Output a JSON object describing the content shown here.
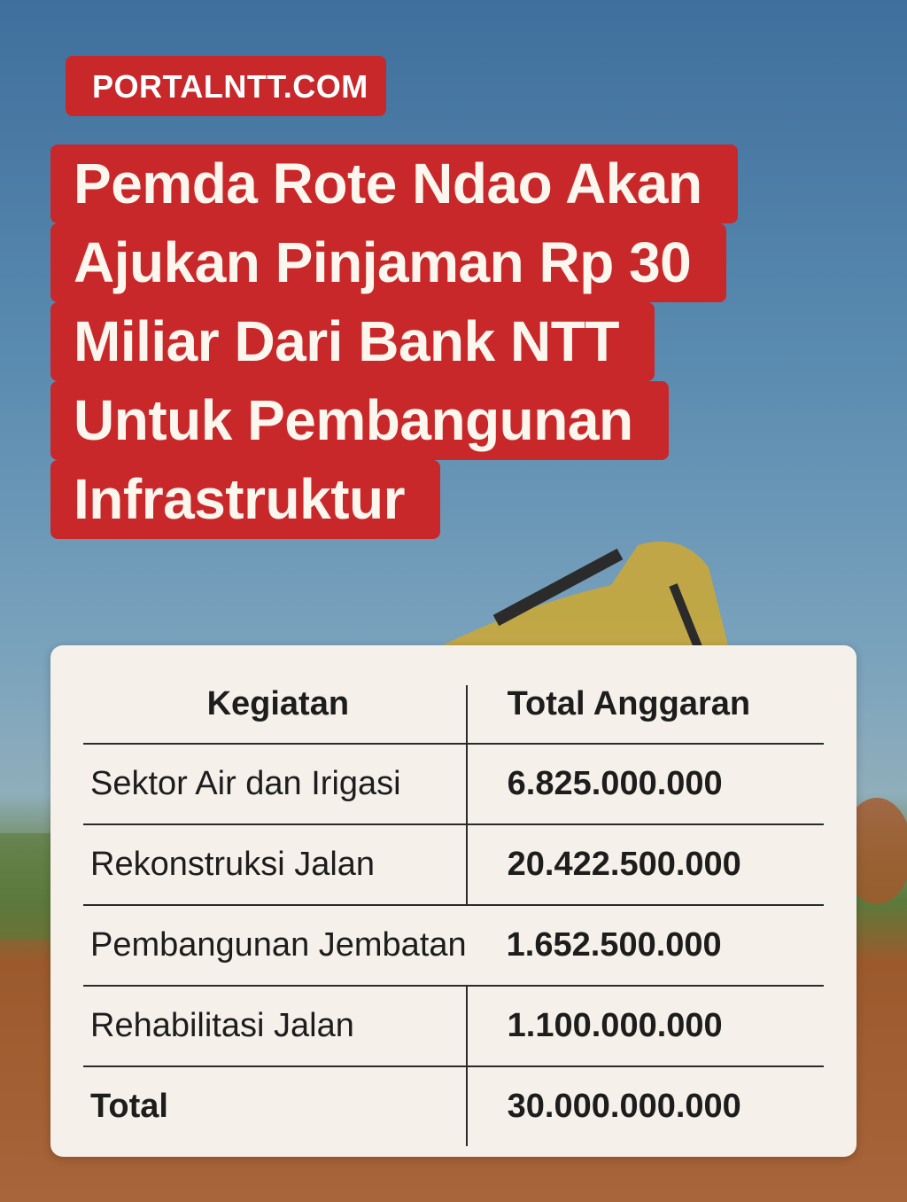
{
  "brand": "PORTALNTT.COM",
  "headline": {
    "lines": [
      "Pemda Rote Ndao Akan",
      "Ajukan Pinjaman Rp 30",
      "Miliar Dari Bank NTT",
      "Untuk Pembangunan",
      "Infrastruktur"
    ]
  },
  "table": {
    "headers": [
      "Kegiatan",
      "Total Anggaran"
    ],
    "rows": [
      {
        "kegiatan": "Sektor Air dan Irigasi",
        "anggaran": "6.825.000.000"
      },
      {
        "kegiatan": "Rekonstruksi Jalan",
        "anggaran": "20.422.500.000"
      },
      {
        "kegiatan": "Pembangunan Jembatan",
        "anggaran": "1.652.500.000"
      },
      {
        "kegiatan": "Rehabilitasi Jalan",
        "anggaran": "1.100.000.000"
      },
      {
        "kegiatan": "Total",
        "anggaran": "30.000.000.000"
      }
    ]
  },
  "colors": {
    "brand_red": "#c9282a",
    "card": "#f5f1ea",
    "excavator": "#d9b53a"
  }
}
